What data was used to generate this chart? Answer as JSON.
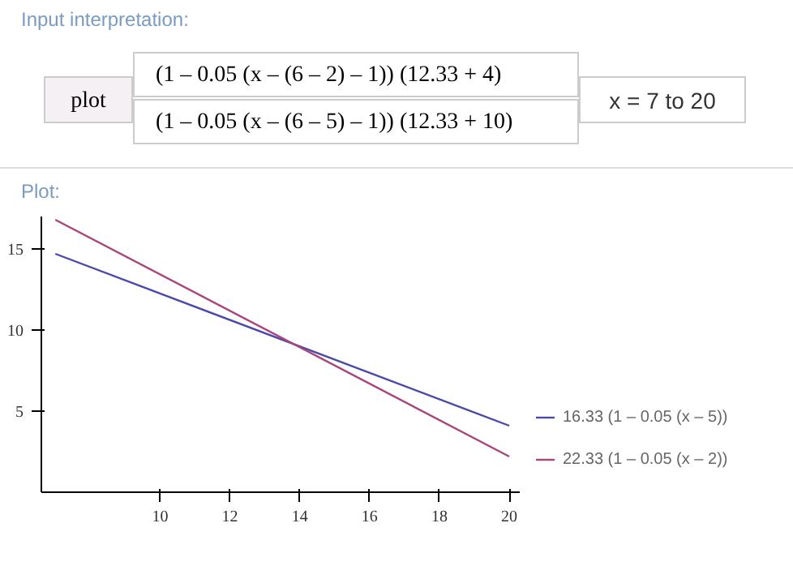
{
  "chart_data": {
    "type": "line",
    "annotations": [
      "Input interpretation:",
      "plot",
      "(1 – 0.05 (x – (6 – 2) – 1)) (12.33 + 4)",
      "(1 – 0.05 (x – (6 – 5) – 1)) (12.33 + 10)",
      "x = 7 to 20",
      "Plot:"
    ],
    "series": [
      {
        "name": "16.33 (1 – 0.05 (x – 5))",
        "color": "#4a4aa8",
        "values": [
          14.7,
          4.1
        ]
      },
      {
        "name": "22.33 (1 – 0.05 (x – 2))",
        "color": "#a8457a",
        "values": [
          16.8,
          2.2
        ]
      }
    ],
    "x": [
      7,
      20
    ],
    "xlim": [
      6.6,
      20.3
    ],
    "ylim": [
      0,
      17
    ],
    "xticks": [
      10,
      12,
      14,
      16,
      18,
      20
    ],
    "yticks": [
      5,
      10,
      15
    ],
    "grid": false,
    "legend": "bottom right",
    "marker": "none",
    "line_style": "solid"
  }
}
